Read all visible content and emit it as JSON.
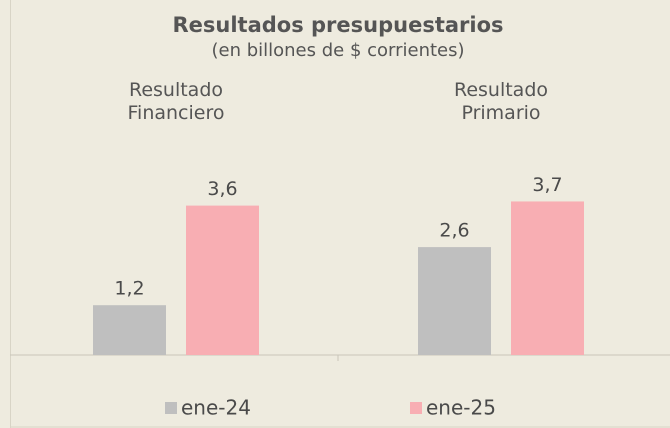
{
  "chart_data": {
    "type": "bar",
    "title": "Resultados presupuestarios",
    "subtitle": "(en billones de $ corrientes)",
    "categories": [
      "Resultado\nFinanciero",
      "Resultado\nPrimario"
    ],
    "series": [
      {
        "name": "ene-24",
        "color": "#bfbfbf",
        "values": [
          1.2,
          2.6
        ],
        "value_labels": [
          "1,2",
          "2,6"
        ]
      },
      {
        "name": "ene-25",
        "color": "#f8aeb3",
        "values": [
          3.6,
          3.7
        ],
        "value_labels": [
          "3,6",
          "3,7"
        ]
      }
    ]
  }
}
